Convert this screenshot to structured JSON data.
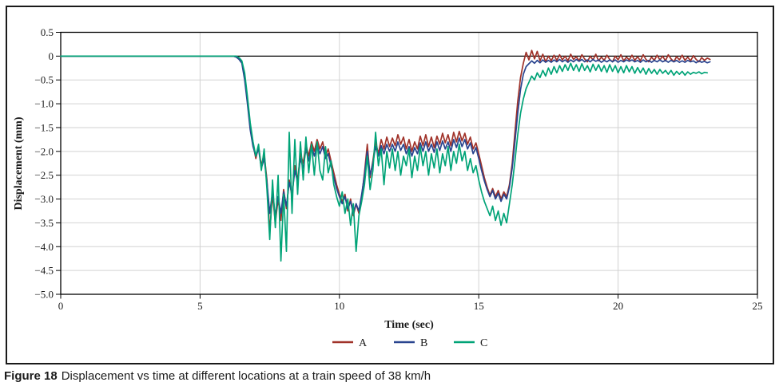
{
  "figure": {
    "caption_label": "Figure 18",
    "caption_text": "Displacement vs time at different locations at a train speed of 38 km/h"
  },
  "chart_data": {
    "type": "line",
    "xlabel": "Time (sec)",
    "ylabel": "Displacement (mm)",
    "xlim": [
      0,
      25
    ],
    "ylim": [
      -5.0,
      0.5
    ],
    "grid": true,
    "legend_position": "bottom-center",
    "x_tick_values": [
      0,
      5,
      10,
      15,
      20,
      25
    ],
    "x_tick_labels": [
      "0",
      "5",
      "10",
      "15",
      "20",
      "25"
    ],
    "y_tick_values": [
      0.5,
      0,
      -0.5,
      -1.0,
      -1.5,
      -2.0,
      -2.5,
      -3.0,
      -3.5,
      -4.0,
      -4.5,
      -5.0
    ],
    "y_tick_labels": [
      "0.5",
      "0",
      "−0.5",
      "−1.0",
      "−1.5",
      "−2.0",
      "−2.5",
      "−3.0",
      "−3.5",
      "−4.0",
      "−4.5",
      "−5.0"
    ],
    "series": [
      {
        "name": "A",
        "color": "#a03229",
        "flat_from_t": 0,
        "flat_value": 0,
        "t_start": 6.2,
        "dt": 0.1,
        "values": [
          0,
          -0.02,
          -0.06,
          -0.12,
          -0.45,
          -0.95,
          -1.5,
          -1.85,
          -2.15,
          -1.9,
          -2.3,
          -2.05,
          -2.6,
          -3.7,
          -2.9,
          -3.5,
          -3.0,
          -3.45,
          -2.8,
          -3.2,
          -2.6,
          -2.95,
          -2.3,
          -2.6,
          -2.05,
          -2.25,
          -1.85,
          -2.1,
          -1.8,
          -2.0,
          -1.75,
          -1.95,
          -1.8,
          -2.1,
          -1.95,
          -2.2,
          -2.45,
          -2.7,
          -2.9,
          -3.05,
          -2.9,
          -3.25,
          -3.0,
          -3.35,
          -3.1,
          -3.3,
          -2.95,
          -2.45,
          -1.85,
          -2.55,
          -2.2,
          -1.8,
          -2.05,
          -1.75,
          -1.95,
          -1.7,
          -1.9,
          -1.72,
          -1.88,
          -1.65,
          -1.85,
          -1.7,
          -1.95,
          -1.75,
          -2.0,
          -1.8,
          -1.95,
          -1.68,
          -1.88,
          -1.65,
          -1.9,
          -1.7,
          -1.92,
          -1.68,
          -1.85,
          -1.62,
          -1.82,
          -1.65,
          -1.88,
          -1.6,
          -1.8,
          -1.58,
          -1.78,
          -1.62,
          -1.85,
          -1.7,
          -1.95,
          -1.82,
          -2.05,
          -2.3,
          -2.55,
          -2.75,
          -2.92,
          -2.78,
          -2.95,
          -2.82,
          -3.0,
          -2.85,
          -2.95,
          -2.7,
          -2.25,
          -1.6,
          -0.95,
          -0.45,
          -0.15,
          0.08,
          -0.08,
          0.12,
          -0.06,
          0.1,
          -0.1,
          0.04,
          -0.12,
          0,
          -0.1,
          0.02,
          -0.09,
          0.03,
          -0.08,
          0,
          -0.1,
          0.04,
          -0.07,
          -0.01,
          -0.1,
          0.03,
          -0.06,
          -0.12,
          0,
          -0.08,
          0.04,
          -0.1,
          -0.02,
          -0.09,
          0.02,
          -0.07,
          -0.12,
          0,
          -0.08,
          0.03,
          -0.1,
          -0.02,
          -0.08,
          0.02,
          -0.09,
          -0.01,
          -0.1,
          0.03,
          -0.07,
          -0.12,
          -0.02,
          -0.09,
          0.02,
          -0.08,
          0,
          -0.1,
          0.03,
          -0.06,
          -0.12,
          -0.01,
          -0.08,
          0.02,
          -0.09,
          -0.02,
          -0.1,
          0.01,
          -0.07,
          -0.12,
          -0.03,
          -0.09,
          -0.04,
          -0.07
        ]
      },
      {
        "name": "B",
        "color": "#29448f",
        "flat_from_t": 0,
        "flat_value": 0,
        "t_start": 6.2,
        "dt": 0.1,
        "values": [
          0,
          -0.02,
          -0.07,
          -0.15,
          -0.5,
          -1.0,
          -1.55,
          -1.9,
          -2.1,
          -1.95,
          -2.35,
          -2.15,
          -2.65,
          -3.3,
          -2.85,
          -3.35,
          -2.95,
          -3.3,
          -2.85,
          -3.15,
          -2.65,
          -2.9,
          -2.4,
          -2.65,
          -2.15,
          -2.35,
          -1.95,
          -2.2,
          -1.9,
          -2.1,
          -1.85,
          -2.05,
          -1.9,
          -2.15,
          -2.05,
          -2.3,
          -2.55,
          -2.78,
          -2.95,
          -3.1,
          -2.95,
          -3.2,
          -3.05,
          -3.3,
          -3.1,
          -3.25,
          -2.9,
          -2.5,
          -2.0,
          -2.5,
          -2.25,
          -1.9,
          -2.1,
          -1.88,
          -2.05,
          -1.85,
          -2.0,
          -1.85,
          -2.0,
          -1.8,
          -1.98,
          -1.85,
          -2.05,
          -1.9,
          -2.1,
          -1.92,
          -2.05,
          -1.82,
          -2.0,
          -1.8,
          -2.0,
          -1.85,
          -2.02,
          -1.8,
          -1.98,
          -1.78,
          -1.95,
          -1.8,
          -2.0,
          -1.75,
          -1.92,
          -1.72,
          -1.9,
          -1.75,
          -1.95,
          -1.82,
          -2.05,
          -1.92,
          -2.15,
          -2.4,
          -2.62,
          -2.8,
          -2.95,
          -2.82,
          -3.0,
          -2.88,
          -3.05,
          -2.9,
          -3.0,
          -2.75,
          -2.35,
          -1.8,
          -1.2,
          -0.7,
          -0.38,
          -0.22,
          -0.16,
          -0.1,
          -0.15,
          -0.09,
          -0.14,
          -0.08,
          -0.13,
          -0.09,
          -0.13,
          -0.08,
          -0.12,
          -0.07,
          -0.12,
          -0.08,
          -0.13,
          -0.08,
          -0.12,
          -0.07,
          -0.11,
          -0.07,
          -0.12,
          -0.08,
          -0.12,
          -0.07,
          -0.11,
          -0.08,
          -0.13,
          -0.09,
          -0.12,
          -0.08,
          -0.12,
          -0.08,
          -0.13,
          -0.09,
          -0.12,
          -0.08,
          -0.11,
          -0.08,
          -0.12,
          -0.09,
          -0.13,
          -0.08,
          -0.12,
          -0.09,
          -0.13,
          -0.09,
          -0.12,
          -0.08,
          -0.12,
          -0.09,
          -0.13,
          -0.09,
          -0.12,
          -0.09,
          -0.13,
          -0.1,
          -0.13,
          -0.09,
          -0.12,
          -0.1,
          -0.14,
          -0.1,
          -0.13,
          -0.11,
          -0.14,
          -0.12
        ]
      },
      {
        "name": "C",
        "color": "#00a377",
        "flat_from_t": 0,
        "flat_value": 0,
        "t_start": 6.2,
        "dt": 0.1,
        "values": [
          0,
          0,
          -0.03,
          -0.1,
          -0.35,
          -0.85,
          -1.4,
          -1.8,
          -2.1,
          -1.85,
          -2.4,
          -1.95,
          -2.8,
          -3.85,
          -2.6,
          -3.6,
          -2.5,
          -4.3,
          -2.9,
          -4.1,
          -1.6,
          -3.3,
          -1.75,
          -2.9,
          -1.8,
          -2.6,
          -1.7,
          -2.45,
          -1.85,
          -2.5,
          -1.8,
          -2.4,
          -2.6,
          -1.9,
          -2.45,
          -2.2,
          -2.7,
          -2.95,
          -3.15,
          -2.85,
          -3.3,
          -3.0,
          -3.55,
          -3.1,
          -4.1,
          -3.35,
          -3.05,
          -2.7,
          -2.1,
          -2.8,
          -2.4,
          -1.6,
          -2.3,
          -1.95,
          -2.7,
          -2.0,
          -2.35,
          -1.95,
          -2.4,
          -2.0,
          -2.5,
          -2.1,
          -2.3,
          -1.95,
          -2.55,
          -2.1,
          -2.4,
          -1.9,
          -2.3,
          -2.0,
          -2.5,
          -2.05,
          -2.35,
          -1.95,
          -2.45,
          -2.05,
          -2.3,
          -1.9,
          -2.4,
          -2.0,
          -2.25,
          -1.85,
          -2.2,
          -2.0,
          -2.4,
          -2.15,
          -2.45,
          -2.3,
          -2.6,
          -2.85,
          -3.05,
          -3.2,
          -3.35,
          -3.15,
          -3.45,
          -3.25,
          -3.55,
          -3.3,
          -3.5,
          -3.1,
          -2.7,
          -2.2,
          -1.65,
          -1.2,
          -0.9,
          -0.68,
          -0.55,
          -0.42,
          -0.5,
          -0.35,
          -0.45,
          -0.3,
          -0.42,
          -0.25,
          -0.38,
          -0.22,
          -0.35,
          -0.2,
          -0.32,
          -0.18,
          -0.3,
          -0.15,
          -0.3,
          -0.18,
          -0.32,
          -0.16,
          -0.3,
          -0.2,
          -0.33,
          -0.17,
          -0.3,
          -0.18,
          -0.32,
          -0.2,
          -0.34,
          -0.18,
          -0.32,
          -0.2,
          -0.35,
          -0.22,
          -0.35,
          -0.2,
          -0.33,
          -0.22,
          -0.36,
          -0.24,
          -0.35,
          -0.25,
          -0.38,
          -0.26,
          -0.36,
          -0.28,
          -0.38,
          -0.28,
          -0.36,
          -0.3,
          -0.38,
          -0.3,
          -0.4,
          -0.32,
          -0.38,
          -0.32,
          -0.4,
          -0.33,
          -0.38,
          -0.34,
          -0.36,
          -0.33,
          -0.37,
          -0.34,
          -0.35
        ]
      }
    ]
  }
}
